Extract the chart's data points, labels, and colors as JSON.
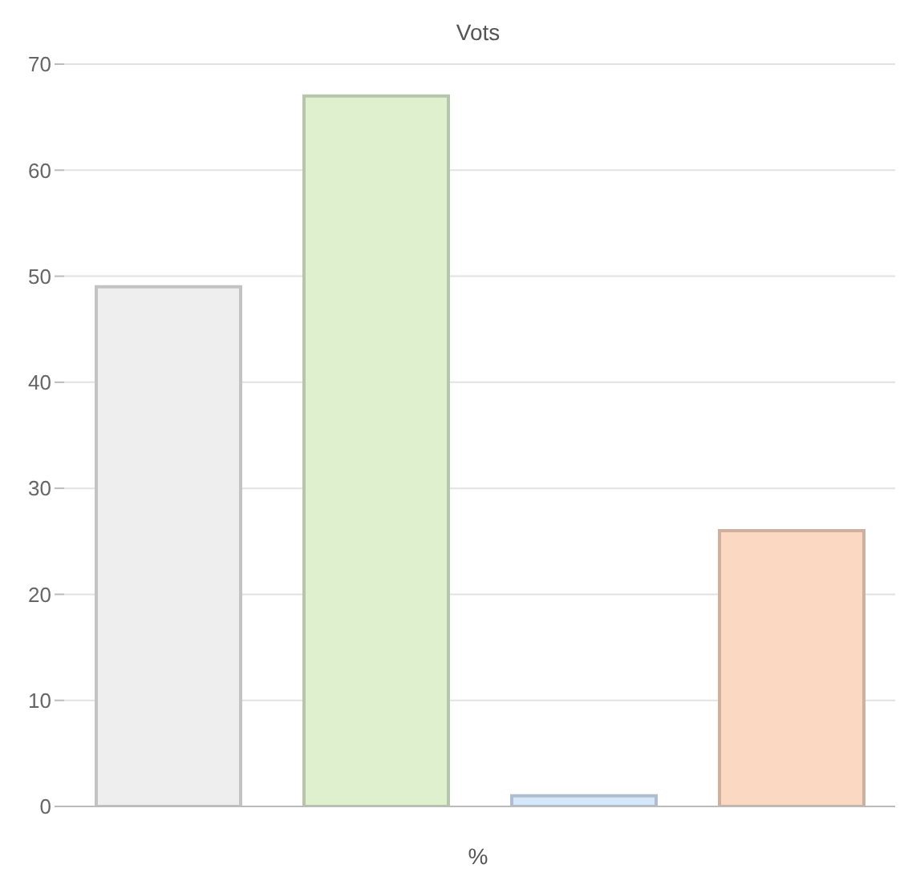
{
  "chart_data": {
    "type": "bar",
    "title": "Vots",
    "xlabel": "%",
    "categories": [
      null,
      null,
      null,
      null
    ],
    "values": [
      49,
      67,
      1,
      26
    ],
    "colors": [
      "#eeeeee",
      "#dff0cf",
      "#d5e8fb",
      "#fad8c1"
    ],
    "ylim": [
      0,
      70
    ],
    "yticks": [
      0,
      10,
      20,
      30,
      40,
      50,
      60,
      70
    ],
    "grid": "y"
  }
}
